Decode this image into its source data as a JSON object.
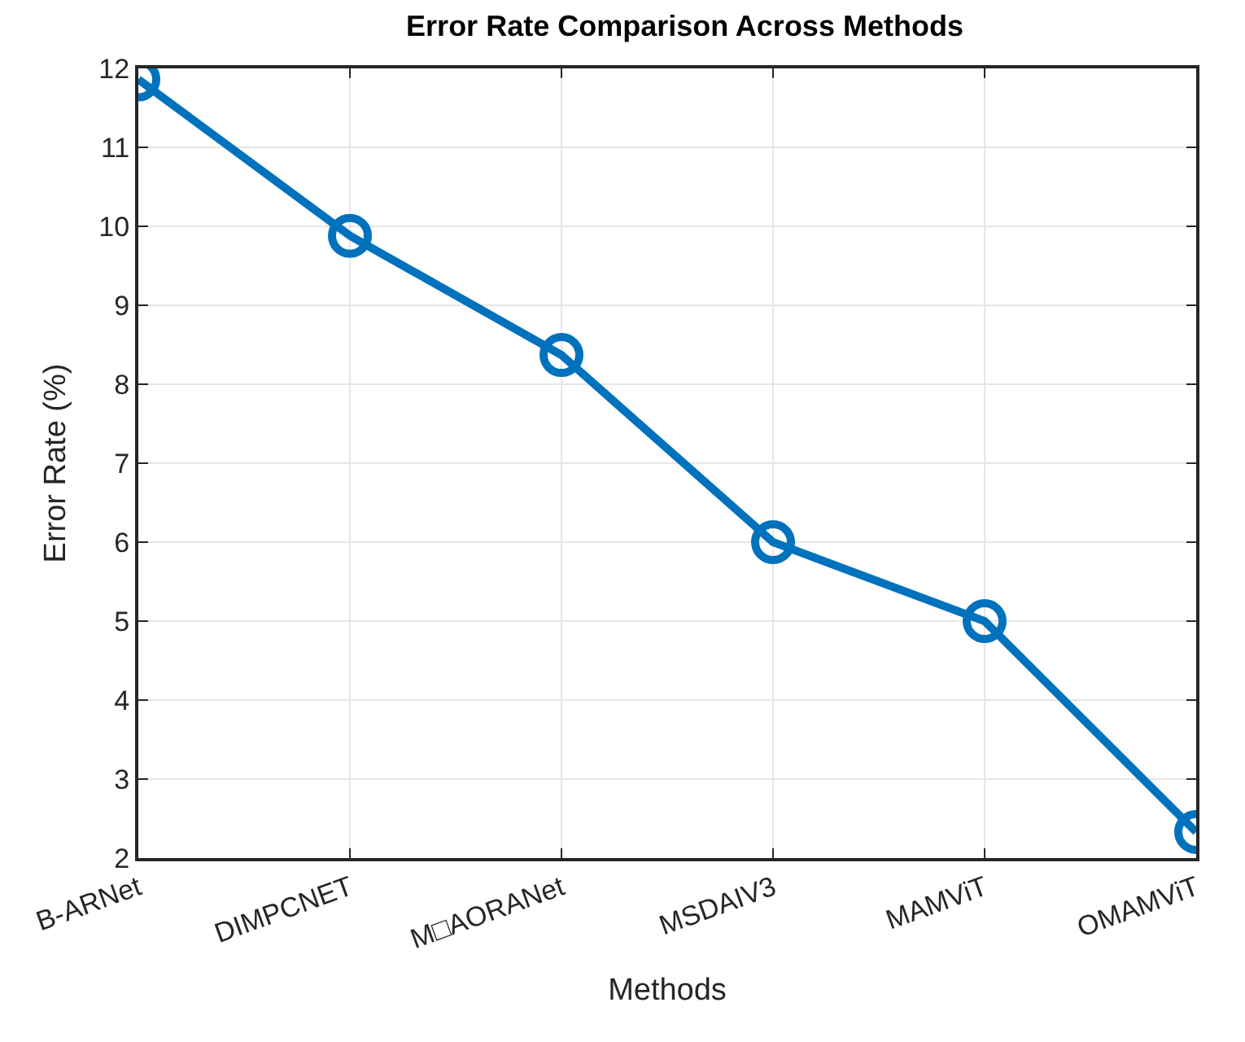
{
  "chart_data": {
    "type": "line",
    "title": "Error Rate Comparison Across Methods",
    "xlabel": "Methods",
    "ylabel": "Error Rate (%)",
    "categories": [
      "B-ARNet",
      "DIMPCNET",
      "M□AORANet",
      "MSDAIV3",
      "MAMViT",
      "OMAMViT"
    ],
    "series": [
      {
        "color": "#0072bd",
        "values": [
          11.86,
          9.88,
          8.37,
          6.0,
          5.0,
          2.33
        ]
      }
    ],
    "ylim": [
      2,
      12
    ],
    "yticks": [
      2,
      3,
      4,
      5,
      6,
      7,
      8,
      9,
      10,
      11,
      12
    ],
    "grid": true,
    "marker": "circle",
    "line_style": "solid"
  }
}
